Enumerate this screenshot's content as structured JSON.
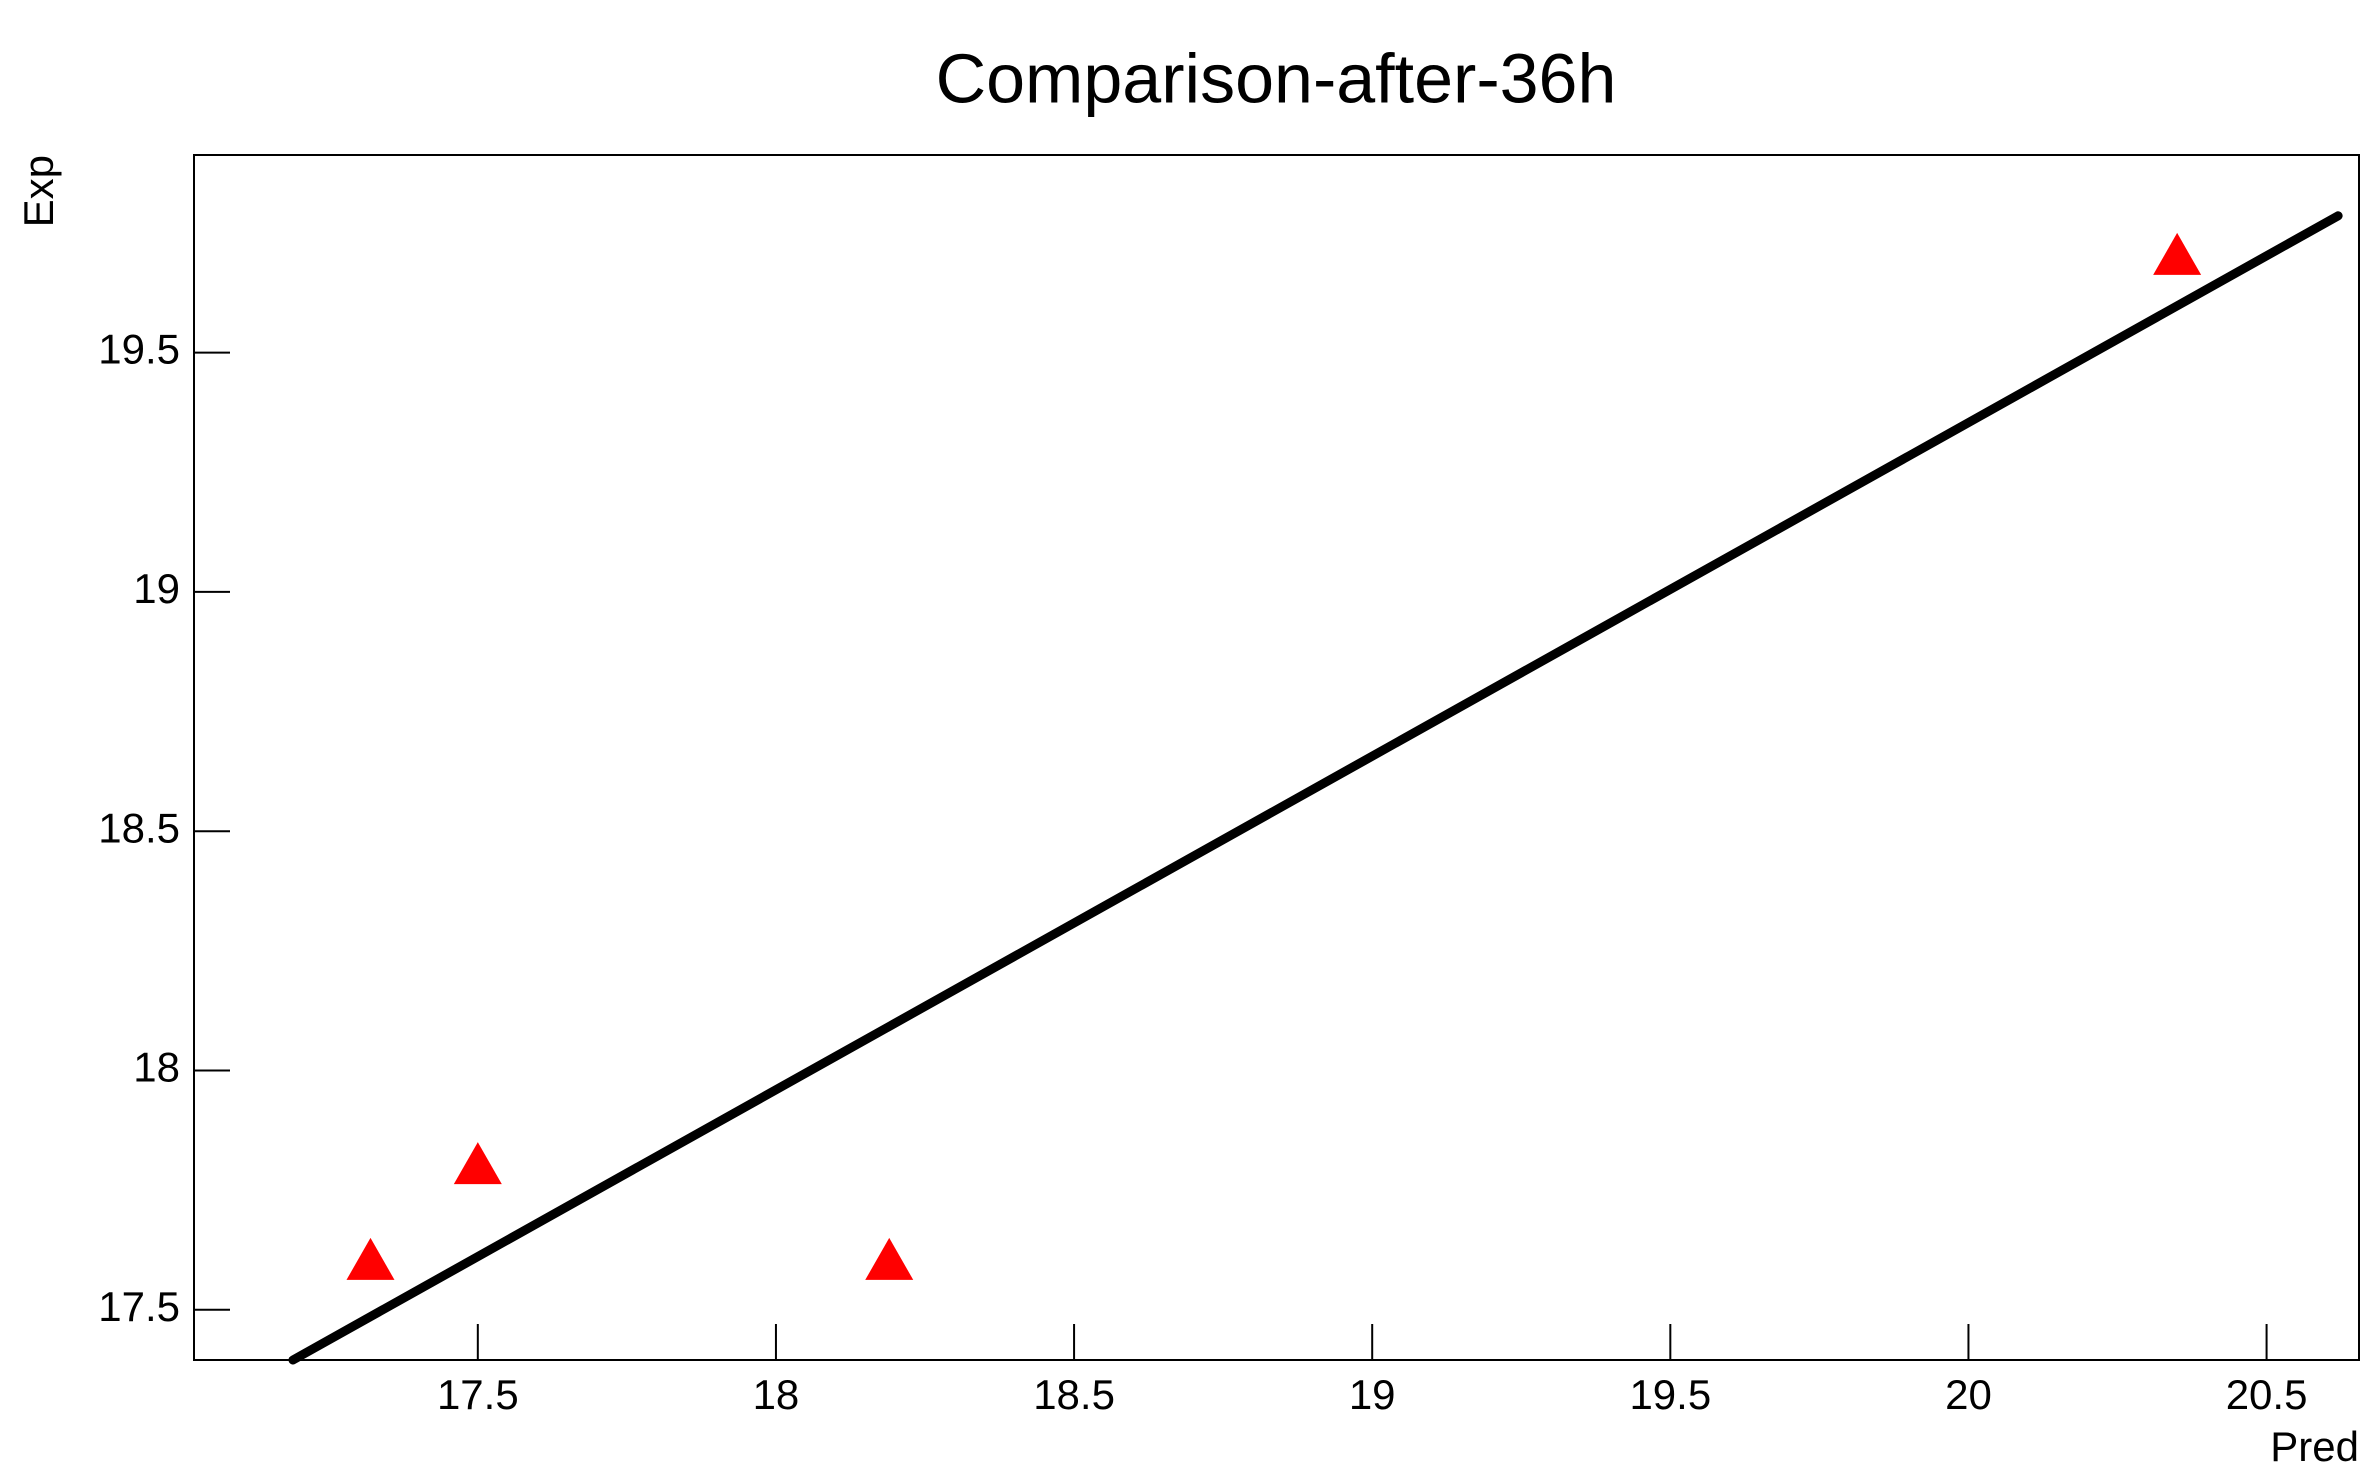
{
  "chart_data": {
    "type": "scatter",
    "title": "Comparison-after-36h",
    "x_label": "Pred",
    "y_label": "Exp",
    "xlim": [
      17.024,
      20.655
    ],
    "ylim": [
      17.395,
      19.913
    ],
    "xticks": [
      17.5,
      18,
      18.5,
      19,
      19.5,
      20,
      20.5
    ],
    "yticks": [
      17.5,
      18,
      18.5,
      19,
      19.5
    ],
    "series": [
      {
        "style": "markers",
        "marker": "triangle",
        "color": "#ff0000",
        "x": [
          17.32,
          17.5,
          18.19,
          20.35
        ],
        "values": [
          17.6,
          17.8,
          17.6,
          19.7
        ]
      },
      {
        "style": "line",
        "color": "#000000",
        "x": [
          17.19,
          20.62
        ],
        "values": [
          17.395,
          19.786
        ]
      }
    ]
  }
}
